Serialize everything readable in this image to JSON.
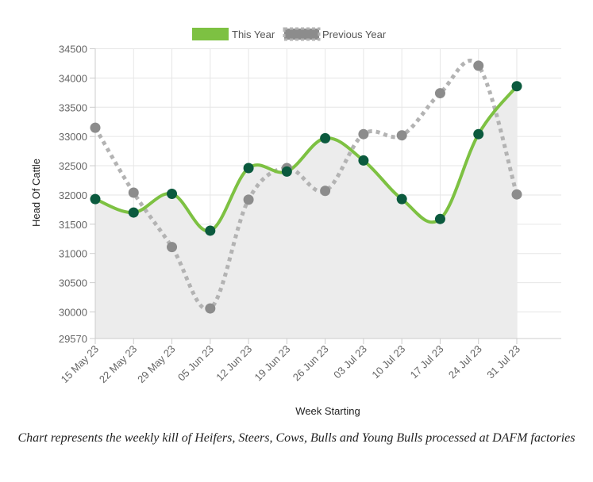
{
  "chart_data": {
    "type": "line",
    "title": "",
    "xlabel": "Week Starting",
    "ylabel": "Head Of Cattle",
    "categories": [
      "15 May 23",
      "22 May 23",
      "29 May 23",
      "05 Jun 23",
      "12 Jun 23",
      "19 Jun 23",
      "26 Jun 23",
      "03 Jul 23",
      "10 Jul 23",
      "17 Jul 23",
      "24 Jul 23",
      "31 Jul 23"
    ],
    "y_ticks": [
      34500,
      34000,
      33500,
      33000,
      32500,
      32000,
      31500,
      31000,
      30500,
      30000,
      29570
    ],
    "ylim": [
      29570,
      34500
    ],
    "grid": true,
    "legend_position": "top",
    "series": [
      {
        "name": "This Year",
        "color": "#7dc142",
        "marker_color": "#0b5a3e",
        "style": "solid",
        "fill": "#ececec",
        "values": [
          31930,
          31700,
          32020,
          31390,
          32460,
          32400,
          32970,
          32590,
          31930,
          31590,
          33040,
          33860
        ]
      },
      {
        "name": "Previous Year",
        "color": "#b3b3b3",
        "marker_color": "#8c8c8c",
        "style": "dotted",
        "values": [
          33150,
          32040,
          31110,
          30060,
          31920,
          32460,
          32070,
          33040,
          33020,
          33740,
          34210,
          32010
        ]
      }
    ]
  },
  "caption": "Chart represents the weekly kill of Heifers, Steers, Cows, Bulls and Young Bulls processed at DAFM factories"
}
